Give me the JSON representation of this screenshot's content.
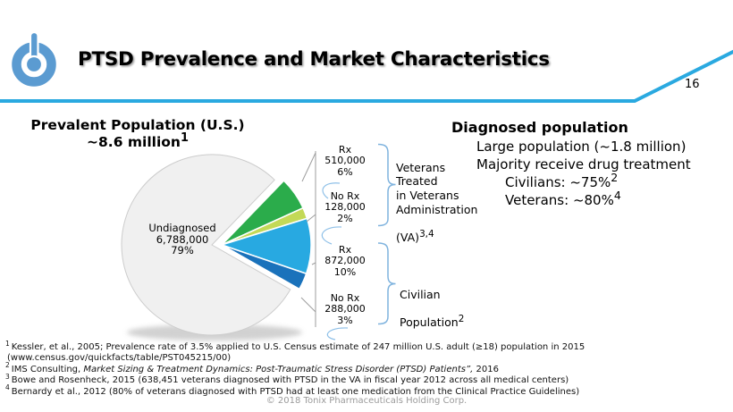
{
  "slide": {
    "page_number": "16",
    "copyright": "© 2018 Tonix Pharmaceuticals Holding Corp."
  },
  "header": {
    "title": "PTSD Prevalence and Market Characteristics",
    "logo": "tonix-power-button-logo",
    "accent_color": "#2aa9e0",
    "logo_color": "#5b9bd1"
  },
  "prevalent": {
    "heading_line1": "Prevalent Population (U.S.)",
    "heading_line2": "~8.6 million",
    "heading_sup": "1"
  },
  "chart_data": {
    "type": "pie",
    "title": "Prevalent Population (U.S.) ~8.6 million",
    "total_population": 8600000,
    "start_angle_deg": -46,
    "legend_position": "callouts-right",
    "segments": [
      {
        "label": "Rx (Veterans VA)",
        "value": 510000,
        "pct": 6,
        "color": "#2bac4b",
        "exploded": true
      },
      {
        "label": "No Rx (Veterans VA)",
        "value": 128000,
        "pct": 2,
        "color": "#c3d957",
        "exploded": true
      },
      {
        "label": "Rx (Civilian)",
        "value": 872000,
        "pct": 10,
        "color": "#28a9e1",
        "exploded": true
      },
      {
        "label": "No Rx (Civilian)",
        "value": 288000,
        "pct": 3,
        "color": "#1a72bb",
        "exploded": true
      },
      {
        "label": "Undiagnosed",
        "value": 6788000,
        "pct": 79,
        "color": "#f0f0f0",
        "exploded": false
      }
    ]
  },
  "callouts": {
    "undiagnosed": "Undiagnosed\n6,788,000\n79%",
    "rx_va": "Rx\n510,000\n6%",
    "no_rx_va": "No Rx\n128,000\n2%",
    "rx_civ": "Rx\n872,000\n10%",
    "no_rx_civ": "No Rx\n288,000\n3%",
    "veterans_group": {
      "lines": "Veterans\nTreated\nin Veterans\nAdministration",
      "tail": "(VA)",
      "sup": "3,4"
    },
    "civilian_group": {
      "line1": "Civilian",
      "line2": "Population",
      "sup": "2"
    }
  },
  "diagnosed": {
    "heading": "Diagnosed population",
    "items": [
      {
        "text": "Large population (~1.8 million)",
        "sup": ""
      },
      {
        "text": "Majority receive drug treatment",
        "sup": ""
      },
      {
        "text": "Civilians: ~75%",
        "sup": "2"
      },
      {
        "text": "Veterans: ~80%",
        "sup": "4"
      }
    ]
  },
  "footnotes": [
    {
      "sup": "1",
      "pre": "Kessler, et al., 2005; Prevalence rate of 3.5% applied to U.S. Census estimate of 247 million U.S. adult (≥18) population in 2015",
      "italic": "",
      "post": ""
    },
    {
      "sup": "",
      "pre": "(www.census.gov/quickfacts/table/PST045215/00)",
      "italic": "",
      "post": ""
    },
    {
      "sup": "2",
      "pre": "IMS Consulting, ",
      "italic": "Market Sizing & Treatment Dynamics: Post-Traumatic Stress Disorder (PTSD) Patients”,",
      "post": " 2016"
    },
    {
      "sup": "3",
      "pre": "Bowe and Rosenheck, 2015 (638,451 veterans diagnosed with PTSD in the VA in fiscal year 2012 across all medical centers)",
      "italic": "",
      "post": ""
    },
    {
      "sup": "4",
      "pre": "Bernardy et al., 2012 (80% of veterans diagnosed with PTSD had at least one medication from the Clinical Practice Guidelines)",
      "italic": "",
      "post": ""
    }
  ]
}
